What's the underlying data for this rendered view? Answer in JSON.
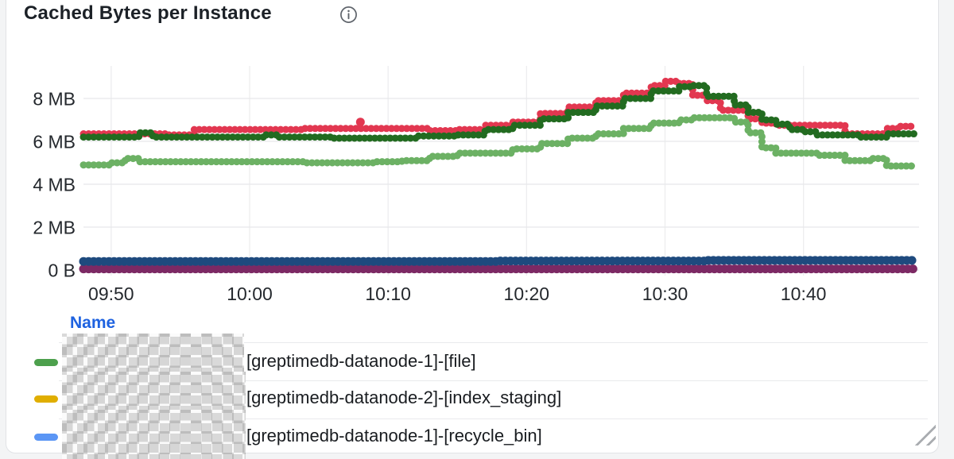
{
  "panel": {
    "title": "Cached Bytes per Instance",
    "info_icon": "info-circle-icon"
  },
  "chart_data": {
    "type": "line",
    "style": "dense-dotted-steps",
    "title": "Cached Bytes per Instance",
    "grid": true,
    "legend_position": "bottom-table",
    "x_range": [
      "09:48",
      "10:48"
    ],
    "x_ticks": [
      "09:50",
      "10:00",
      "10:10",
      "10:20",
      "10:30",
      "10:40"
    ],
    "y_ticks": [
      {
        "label": "8 MB",
        "value_mb": 8
      },
      {
        "label": "6 MB",
        "value_mb": 6
      },
      {
        "label": "4 MB",
        "value_mb": 4
      },
      {
        "label": "2 MB",
        "value_mb": 2
      },
      {
        "label": "0 B",
        "value_mb": 0
      }
    ],
    "y_max_mb": 9.5,
    "colors": {
      "grid_h": "#e7e8ea",
      "grid_v": "#ededef",
      "axis_text": "#24282d"
    },
    "series": [
      {
        "name": "red",
        "color": "#e23750",
        "width": 9,
        "points": [
          [
            "09:48",
            6.35
          ],
          [
            "09:53",
            6.35
          ],
          [
            "09:54",
            6.3
          ],
          [
            "09:56",
            6.55
          ],
          [
            "10:04",
            6.6
          ],
          [
            "10:10",
            6.6
          ],
          [
            "10:13",
            6.5
          ],
          [
            "10:15",
            6.55
          ],
          [
            "10:17",
            6.75
          ],
          [
            "10:19",
            6.9
          ],
          [
            "10:21",
            7.3
          ],
          [
            "10:23",
            7.6
          ],
          [
            "10:25",
            7.9
          ],
          [
            "10:27",
            8.25
          ],
          [
            "10:29",
            8.6
          ],
          [
            "10:30",
            8.8
          ],
          [
            "10:31",
            8.7
          ],
          [
            "10:32",
            8.15
          ],
          [
            "10:33",
            7.9
          ],
          [
            "10:34",
            7.45
          ],
          [
            "10:36",
            7.05
          ],
          [
            "10:37",
            6.85
          ],
          [
            "10:38",
            6.75
          ],
          [
            "10:42",
            6.75
          ],
          [
            "10:43",
            6.35
          ],
          [
            "10:45",
            6.35
          ],
          [
            "10:46",
            6.6
          ],
          [
            "10:47",
            6.7
          ],
          [
            "10:48",
            6.7
          ]
        ]
      },
      {
        "name": "dark-green",
        "color": "#226b20",
        "width": 9,
        "points": [
          [
            "09:48",
            6.2
          ],
          [
            "09:51",
            6.2
          ],
          [
            "09:52",
            6.4
          ],
          [
            "09:53",
            6.2
          ],
          [
            "10:01",
            6.3
          ],
          [
            "10:02",
            6.2
          ],
          [
            "10:06",
            6.15
          ],
          [
            "10:10",
            6.15
          ],
          [
            "10:12",
            6.25
          ],
          [
            "10:15",
            6.3
          ],
          [
            "10:17",
            6.55
          ],
          [
            "10:19",
            6.75
          ],
          [
            "10:21",
            7.05
          ],
          [
            "10:23",
            7.35
          ],
          [
            "10:25",
            7.65
          ],
          [
            "10:27",
            8.0
          ],
          [
            "10:29",
            8.35
          ],
          [
            "10:31",
            8.55
          ],
          [
            "10:32",
            8.6
          ],
          [
            "10:33",
            8.1
          ],
          [
            "10:35",
            7.7
          ],
          [
            "10:36",
            7.35
          ],
          [
            "10:37",
            7.0
          ],
          [
            "10:38",
            6.8
          ],
          [
            "10:39",
            6.55
          ],
          [
            "10:40",
            6.45
          ],
          [
            "10:41",
            6.3
          ],
          [
            "10:44",
            6.2
          ],
          [
            "10:46",
            6.35
          ],
          [
            "10:48",
            6.35
          ]
        ]
      },
      {
        "name": "light-green",
        "color": "#6cb164",
        "width": 9,
        "points": [
          [
            "09:48",
            4.9
          ],
          [
            "09:50",
            5.0
          ],
          [
            "09:51",
            5.2
          ],
          [
            "09:52",
            5.05
          ],
          [
            "10:02",
            5.05
          ],
          [
            "10:04",
            5.0
          ],
          [
            "10:09",
            5.05
          ],
          [
            "10:11",
            5.1
          ],
          [
            "10:13",
            5.3
          ],
          [
            "10:15",
            5.45
          ],
          [
            "10:17",
            5.45
          ],
          [
            "10:19",
            5.65
          ],
          [
            "10:21",
            5.9
          ],
          [
            "10:23",
            6.15
          ],
          [
            "10:25",
            6.35
          ],
          [
            "10:27",
            6.6
          ],
          [
            "10:29",
            6.85
          ],
          [
            "10:31",
            7.0
          ],
          [
            "10:32",
            7.1
          ],
          [
            "10:34",
            7.1
          ],
          [
            "10:35",
            6.9
          ],
          [
            "10:36",
            6.4
          ],
          [
            "10:37",
            5.7
          ],
          [
            "10:38",
            5.45
          ],
          [
            "10:41",
            5.35
          ],
          [
            "10:43",
            5.1
          ],
          [
            "10:45",
            5.2
          ],
          [
            "10:46",
            4.85
          ],
          [
            "10:48",
            4.85
          ]
        ]
      },
      {
        "name": "purple",
        "color": "#7c2964",
        "width": 11,
        "points": [
          [
            "09:48",
            0.05
          ],
          [
            "10:48",
            0.05
          ]
        ]
      },
      {
        "name": "dark-blue",
        "color": "#1e4a7e",
        "width": 11,
        "points": [
          [
            "09:48",
            0.4
          ],
          [
            "10:18",
            0.42
          ],
          [
            "10:33",
            0.45
          ],
          [
            "10:48",
            0.45
          ]
        ]
      }
    ],
    "outlier_points": [
      {
        "series": "red",
        "color": "#e23750",
        "time": "10:08",
        "value_mb": 6.9
      }
    ]
  },
  "legend": {
    "header": "Name",
    "rows": [
      {
        "color": "#4da04d",
        "name_redacted": true,
        "label": "[greptimedb-datanode-1]-[file]"
      },
      {
        "color": "#e0ae00",
        "name_redacted": true,
        "label": "[greptimedb-datanode-2]-[index_staging]"
      },
      {
        "color": "#5b96f5",
        "name_redacted": true,
        "label": "[greptimedb-datanode-1]-[recycle_bin]"
      }
    ]
  }
}
